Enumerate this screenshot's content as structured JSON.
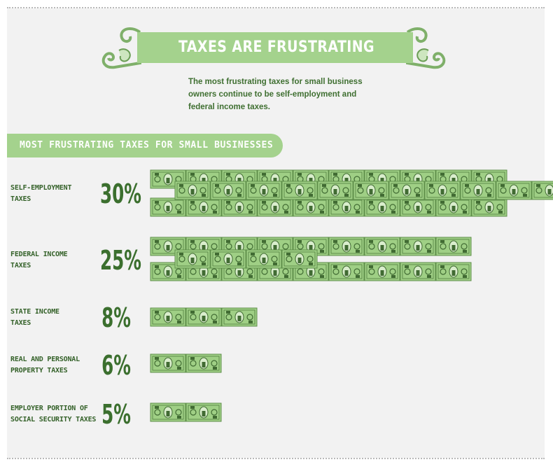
{
  "header": {
    "title": "TAXES ARE FRUSTRATING",
    "subtitle_lines": [
      "The most frustrating taxes for small business",
      "owners continue to be self-employment and",
      "federal income taxes."
    ]
  },
  "section": {
    "title": "MOST FRUSTRATING TAXES FOR SMALL BUSINESSES"
  },
  "colors": {
    "accent": "#a4d28d",
    "dark_green": "#3b6f2e",
    "bill_green": "#9fcf85",
    "panel": "#f2f2f2"
  },
  "icons": [
    "scroll-ornament-icon",
    "dollar-bill-icon"
  ],
  "chart_data": {
    "type": "bar",
    "title": "MOST FRUSTRATING TAXES FOR SMALL BUSINESSES",
    "unit": "%",
    "marker": "dollar-bill-icon",
    "categories": [
      [
        "SELF-EMPLOYMENT",
        "TAXES"
      ],
      [
        "FEDERAL INCOME",
        "TAXES"
      ],
      [
        "STATE INCOME",
        "TAXES"
      ],
      [
        "REAL AND PERSONAL",
        "PROPERTY TAXES"
      ],
      [
        "EMPLOYER PORTION OF",
        "SOCIAL SECURITY TAXES"
      ]
    ],
    "values": [
      30,
      25,
      8,
      6,
      5
    ],
    "value_labels": [
      "30%",
      "25%",
      "8%",
      "6%",
      "5%"
    ]
  }
}
